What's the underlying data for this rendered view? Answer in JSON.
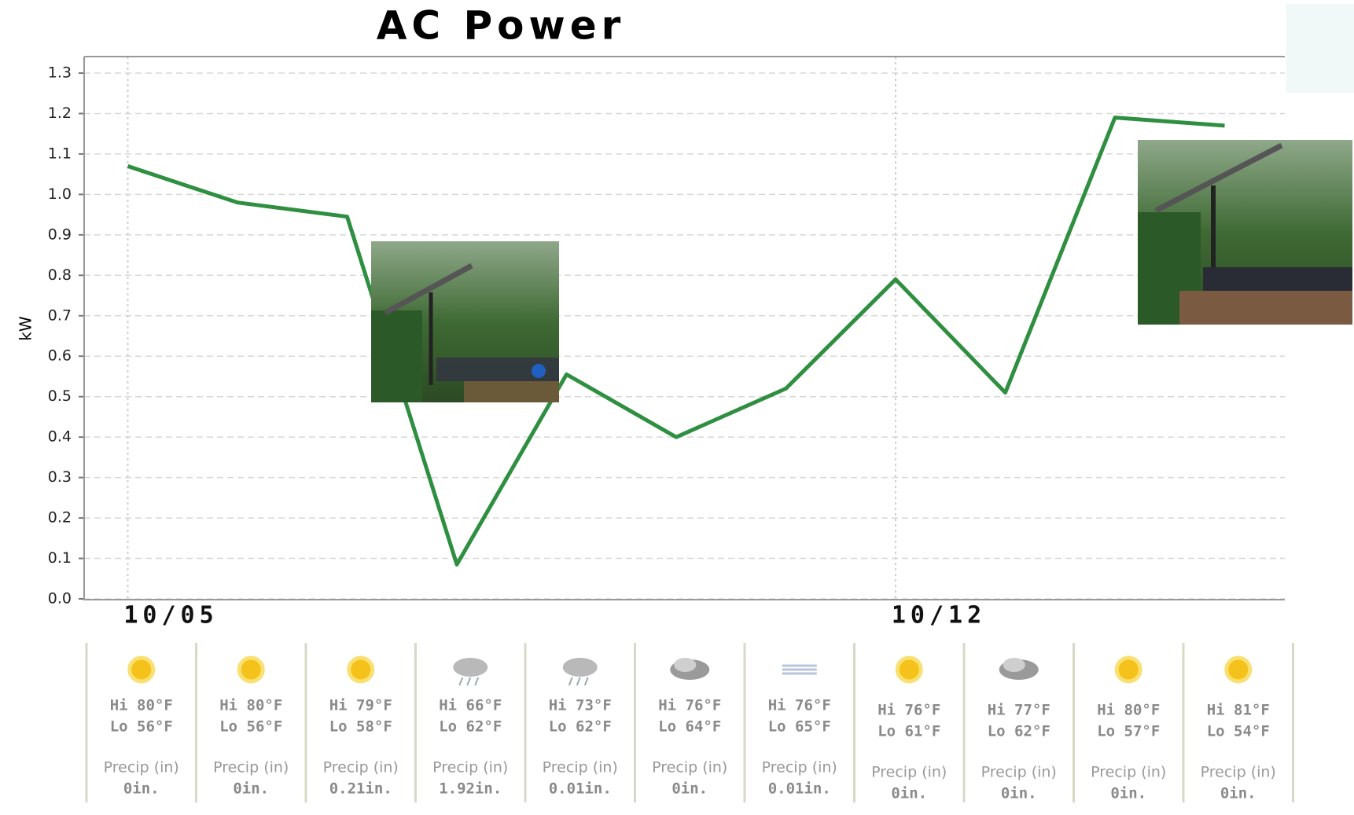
{
  "chart_data": {
    "type": "line",
    "title": "AC Power",
    "y_label": "kW",
    "categories": [
      "10/05",
      null,
      null,
      null,
      null,
      null,
      null,
      "10/12",
      null,
      null,
      null
    ],
    "series": [
      {
        "name": "AC Power",
        "color": "#2f8f40",
        "values": [
          1.07,
          0.98,
          0.945,
          0.085,
          0.555,
          0.4,
          0.52,
          0.79,
          0.51,
          1.19,
          1.17
        ]
      }
    ],
    "ylim": [
      0,
      1.3
    ],
    "yticks": [
      {
        "value": 0,
        "label": "0.0"
      },
      0.1,
      0.2,
      0.3,
      0.4,
      0.5,
      0.6,
      0.7,
      0.8,
      0.9,
      {
        "value": 1,
        "label": "1.0"
      },
      1.1,
      1.2,
      1.3
    ],
    "grid": true
  },
  "weather": [
    {
      "icon": "sun",
      "hi": "Hi 80°F",
      "lo": "Lo 56°F",
      "precip_label": "Precip (in)",
      "precip": "0in."
    },
    {
      "icon": "sun",
      "hi": "Hi 80°F",
      "lo": "Lo 56°F",
      "precip_label": "Precip (in)",
      "precip": "0in."
    },
    {
      "icon": "sun",
      "hi": "Hi 79°F",
      "lo": "Lo 58°F",
      "precip_label": "Precip (in)",
      "precip": "0.21in."
    },
    {
      "icon": "rain",
      "hi": "Hi 66°F",
      "lo": "Lo 62°F",
      "precip_label": "Precip (in)",
      "precip": "1.92in."
    },
    {
      "icon": "rain",
      "hi": "Hi 73°F",
      "lo": "Lo 62°F",
      "precip_label": "Precip (in)",
      "precip": "0.01in."
    },
    {
      "icon": "cloud",
      "hi": "Hi 76°F",
      "lo": "Lo 64°F",
      "precip_label": "Precip (in)",
      "precip": "0in."
    },
    {
      "icon": "fog",
      "hi": "Hi 76°F",
      "lo": "Lo 65°F",
      "precip_label": "Precip (in)",
      "precip": "0.01in."
    },
    {
      "icon": "sun",
      "hi": "Hi 76°F",
      "lo": "Lo 61°F",
      "precip_label": "Precip (in)",
      "precip": "0in."
    },
    {
      "icon": "cloud",
      "hi": "Hi 77°F",
      "lo": "Lo 62°F",
      "precip_label": "Precip (in)",
      "precip": "0in."
    },
    {
      "icon": "sun",
      "hi": "Hi 80°F",
      "lo": "Lo 57°F",
      "precip_label": "Precip (in)",
      "precip": "0in."
    },
    {
      "icon": "sun",
      "hi": "Hi 81°F",
      "lo": "Lo 54°F",
      "precip_label": "Precip (in)",
      "precip": "0in."
    }
  ]
}
